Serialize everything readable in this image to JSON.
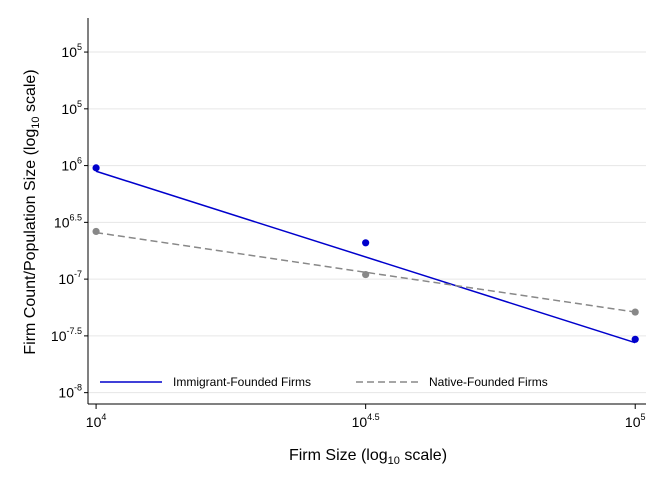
{
  "chart_data": {
    "type": "line",
    "x_scale": "log10",
    "y_scale": "log10",
    "xlabel": "Firm Size (log10 scale)",
    "ylabel": "Firm Count/Population Size (log10 scale)",
    "x_ticks": [
      {
        "value": 10000,
        "base": "10",
        "exp": "4"
      },
      {
        "value": 31623,
        "base": "10",
        "exp": "4.5"
      },
      {
        "value": 100000,
        "base": "10",
        "exp": "5"
      }
    ],
    "y_ticks": [
      {
        "exp_value": 5.75,
        "base": "10",
        "exp": "5"
      },
      {
        "exp_value": 6.25,
        "base": "10",
        "exp": "5"
      },
      {
        "exp_value": 6.75,
        "base": "10",
        "exp": "6"
      },
      {
        "exp_value": 7.25,
        "base": "10",
        "exp": "6.5"
      },
      {
        "exp_value": 7.75,
        "base": "10",
        "exp": "-7"
      },
      {
        "exp_value": 8.25,
        "base": "10",
        "exp": "-7.5"
      },
      {
        "exp_value": 8.75,
        "base": "10",
        "exp": "-8"
      }
    ],
    "xlim_log10": [
      3.985,
      5.02
    ],
    "ylim_exp": [
      5.45,
      8.85
    ],
    "grid": "horizontal",
    "legend_position": "bottom-inside",
    "series": [
      {
        "name": "Immigrant-Founded Firms",
        "color": "#0000cc",
        "line_style": "solid",
        "points": [
          {
            "x": 10000,
            "y_exp": 6.77
          },
          {
            "x": 31623,
            "y_exp": 7.43
          },
          {
            "x": 100000,
            "y_exp": 8.28
          }
        ],
        "fit": [
          {
            "x": 10000,
            "y_exp": 6.8
          },
          {
            "x": 100000,
            "y_exp": 8.31
          }
        ]
      },
      {
        "name": "Native-Founded Firms",
        "color": "#888888",
        "line_style": "dashed",
        "points": [
          {
            "x": 10000,
            "y_exp": 7.33
          },
          {
            "x": 31623,
            "y_exp": 7.71
          },
          {
            "x": 100000,
            "y_exp": 8.04
          }
        ],
        "fit": [
          {
            "x": 10000,
            "y_exp": 7.34
          },
          {
            "x": 100000,
            "y_exp": 8.04
          }
        ]
      }
    ]
  },
  "labels": {
    "xlabel_pre": "Firm Size (log",
    "xlabel_sub": "10",
    "xlabel_post": " scale)",
    "ylabel_pre": "Firm Count/Population Size (log",
    "ylabel_sub": "10",
    "ylabel_post": " scale)"
  }
}
